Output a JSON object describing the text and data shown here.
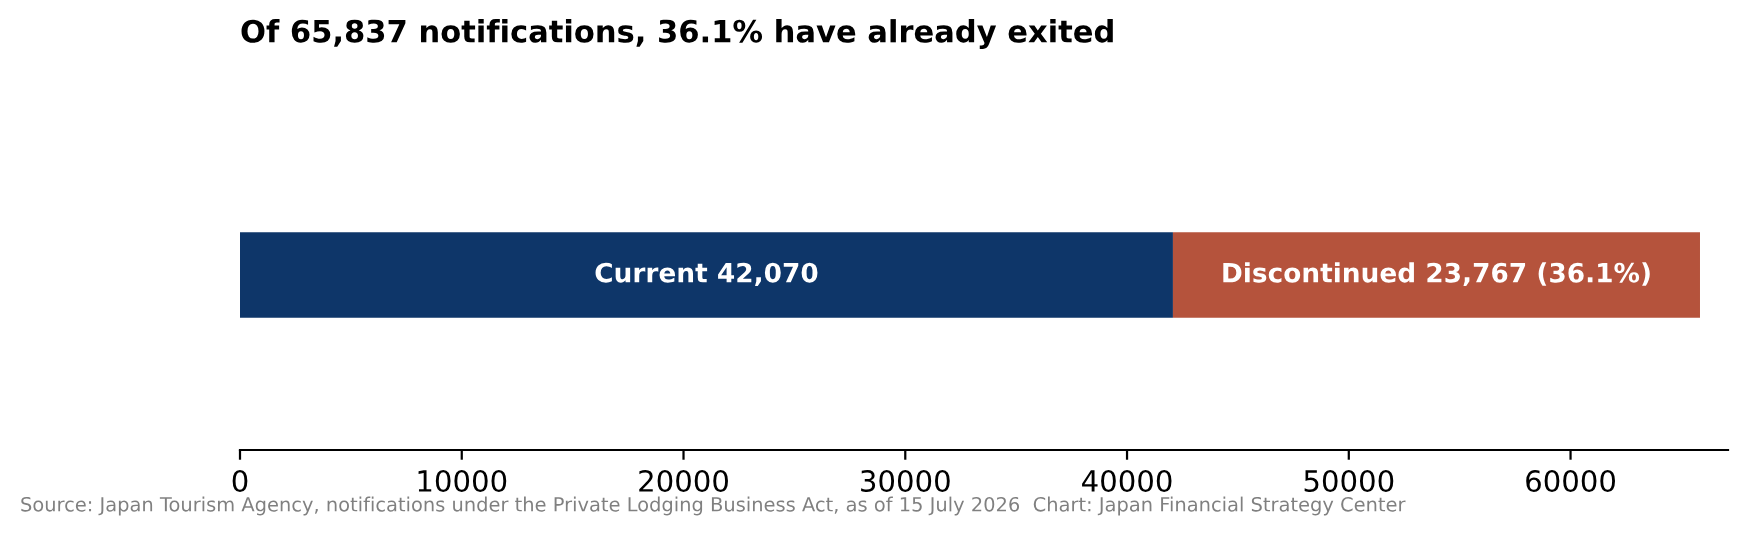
{
  "chart_data": {
    "type": "bar",
    "orientation": "horizontal",
    "stacked": true,
    "title": "Of 65,837 notifications, 36.1% have already exited",
    "categories": [
      null
    ],
    "series": [
      {
        "color": "#0e3669",
        "values": [
          42070
        ],
        "value_labels": [
          "Current 42,070"
        ]
      },
      {
        "color": "#b5533c",
        "values": [
          23767
        ],
        "value_labels": [
          "Discontinued 23,767 (36.1%)"
        ]
      }
    ],
    "xlim": [
      0,
      67100
    ],
    "xticks": [
      0,
      10000,
      20000,
      30000,
      40000,
      50000,
      60000
    ],
    "tick_labels": "x",
    "grid": false,
    "annotations": [
      "Source: Japan Tourism Agency, notifications under the Private Lodging Business Act, as of 15 July 2026  Chart: Japan Financial Strategy Center"
    ]
  }
}
